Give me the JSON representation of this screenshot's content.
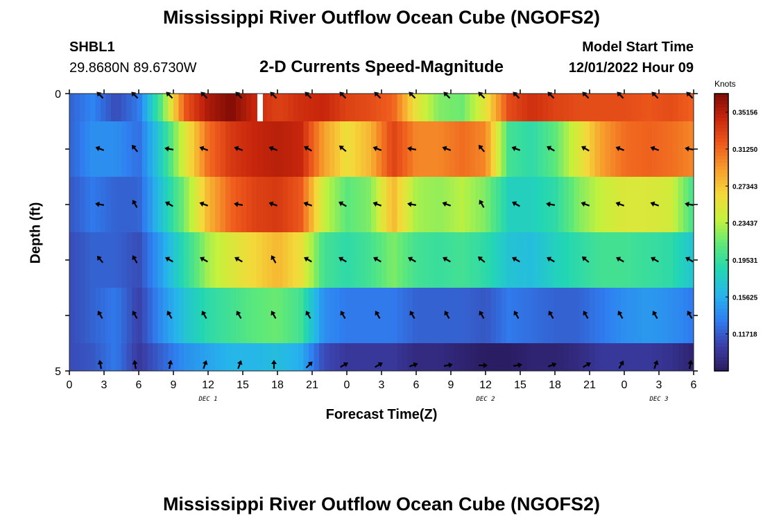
{
  "header": {
    "title": "Mississippi River Outflow Ocean Cube (NGOFS2)",
    "station_id": "SHBL1",
    "station_coords": "29.8680N  89.6730W",
    "subtitle": "2-D Currents Speed-Magnitude",
    "model_start_label": "Model Start Time",
    "model_start_value": "12/01/2022 Hour 09"
  },
  "footer": {
    "title": "Mississippi River Outflow Ocean Cube (NGOFS2)"
  },
  "chart_data": {
    "type": "heatmap",
    "xlabel": "Forecast Time(Z)",
    "ylabel": "Depth (ft)",
    "x_tick_labels": [
      "0",
      "3",
      "6",
      "9",
      "12",
      "15",
      "18",
      "21",
      "0",
      "3",
      "6",
      "9",
      "12",
      "15",
      "18",
      "21",
      "0",
      "3",
      "6"
    ],
    "x_hours": [
      0,
      3,
      6,
      9,
      12,
      15,
      18,
      21,
      24,
      27,
      30,
      33,
      36,
      39,
      42,
      45,
      48,
      51,
      54
    ],
    "xlim": [
      0,
      54
    ],
    "date_labels": [
      {
        "label": "DEC 1",
        "hour": 12
      },
      {
        "label": "DEC 2",
        "hour": 36
      },
      {
        "label": "DEC 3",
        "hour": 51
      }
    ],
    "y_tick_labels": [
      "0",
      "5"
    ],
    "ylim": [
      0,
      5
    ],
    "depth_layers": [
      0,
      1,
      2,
      3,
      4,
      5
    ],
    "colorbar": {
      "unit": "Knots",
      "range": [
        0.07812,
        0.37109
      ],
      "tick_labels": [
        "0.35156",
        "0.31250",
        "0.27343",
        "0.23437",
        "0.19531",
        "0.15625",
        "0.11718"
      ],
      "tick_values": [
        0.35156,
        0.3125,
        0.27343,
        0.23437,
        0.19531,
        0.15625,
        0.11718
      ],
      "colormap": [
        "#2a1a5e",
        "#3b3fa8",
        "#2f7df0",
        "#26b4ec",
        "#23d6b3",
        "#5de87a",
        "#c4f23c",
        "#f4d93a",
        "#f79d2c",
        "#ee5a1c",
        "#c8260c",
        "#7e0b05"
      ]
    },
    "speed_knots": [
      [
        0.12,
        0.135,
        0.11,
        0.13,
        0.21,
        0.32,
        0.355,
        0.37,
        0.345,
        0.33,
        0.34,
        0.345,
        0.33,
        0.325,
        0.315,
        0.255,
        0.22,
        0.215,
        0.255,
        0.325,
        0.34,
        0.33,
        0.325,
        0.325,
        0.325,
        0.32,
        0.325,
        0.315
      ],
      [
        0.12,
        0.14,
        0.14,
        0.125,
        0.18,
        0.25,
        0.31,
        0.335,
        0.345,
        0.35,
        0.345,
        0.29,
        0.26,
        0.28,
        0.33,
        0.3,
        0.3,
        0.31,
        0.3,
        0.2,
        0.19,
        0.21,
        0.25,
        0.29,
        0.31,
        0.315,
        0.31,
        0.3
      ],
      [
        0.115,
        0.13,
        0.12,
        0.12,
        0.17,
        0.22,
        0.28,
        0.315,
        0.33,
        0.335,
        0.32,
        0.24,
        0.21,
        0.22,
        0.28,
        0.23,
        0.225,
        0.235,
        0.22,
        0.18,
        0.18,
        0.19,
        0.22,
        0.24,
        0.25,
        0.25,
        0.245,
        0.2
      ],
      [
        0.11,
        0.12,
        0.12,
        0.11,
        0.15,
        0.19,
        0.23,
        0.25,
        0.265,
        0.28,
        0.26,
        0.2,
        0.19,
        0.2,
        0.22,
        0.2,
        0.195,
        0.2,
        0.19,
        0.17,
        0.165,
        0.18,
        0.19,
        0.2,
        0.2,
        0.195,
        0.19,
        0.17
      ],
      [
        0.11,
        0.12,
        0.13,
        0.105,
        0.14,
        0.17,
        0.19,
        0.2,
        0.21,
        0.215,
        0.2,
        0.14,
        0.13,
        0.13,
        0.13,
        0.12,
        0.12,
        0.12,
        0.115,
        0.13,
        0.125,
        0.12,
        0.12,
        0.13,
        0.14,
        0.145,
        0.14,
        0.13
      ],
      [
        0.11,
        0.115,
        0.13,
        0.1,
        0.12,
        0.14,
        0.15,
        0.16,
        0.16,
        0.165,
        0.155,
        0.11,
        0.1,
        0.1,
        0.1,
        0.09,
        0.09,
        0.085,
        0.08,
        0.08,
        0.085,
        0.085,
        0.09,
        0.1,
        0.1,
        0.1,
        0.095,
        0.085
      ]
    ],
    "vector_x_hours": [
      3,
      6,
      9,
      12,
      15,
      18,
      21,
      24,
      27,
      30,
      33,
      36,
      39,
      42,
      45,
      48,
      51,
      54
    ],
    "vector_direction_deg": [
      [
        315,
        315,
        315,
        315,
        315,
        315,
        315,
        315,
        315,
        315,
        315,
        315,
        315,
        315,
        315,
        315,
        315,
        315
      ],
      [
        290,
        320,
        280,
        290,
        290,
        290,
        300,
        310,
        290,
        280,
        290,
        320,
        290,
        300,
        300,
        290,
        290,
        280
      ],
      [
        280,
        330,
        300,
        290,
        280,
        290,
        290,
        300,
        290,
        280,
        290,
        330,
        300,
        280,
        290,
        290,
        290,
        280
      ],
      [
        320,
        330,
        300,
        300,
        300,
        330,
        300,
        300,
        300,
        300,
        300,
        310,
        300,
        300,
        310,
        300,
        300,
        300
      ],
      [
        330,
        330,
        330,
        330,
        330,
        330,
        330,
        330,
        330,
        330,
        330,
        330,
        330,
        330,
        330,
        330,
        330,
        330
      ],
      [
        350,
        350,
        10,
        20,
        20,
        0,
        45,
        60,
        60,
        70,
        80,
        90,
        80,
        70,
        60,
        30,
        20,
        10
      ]
    ]
  }
}
